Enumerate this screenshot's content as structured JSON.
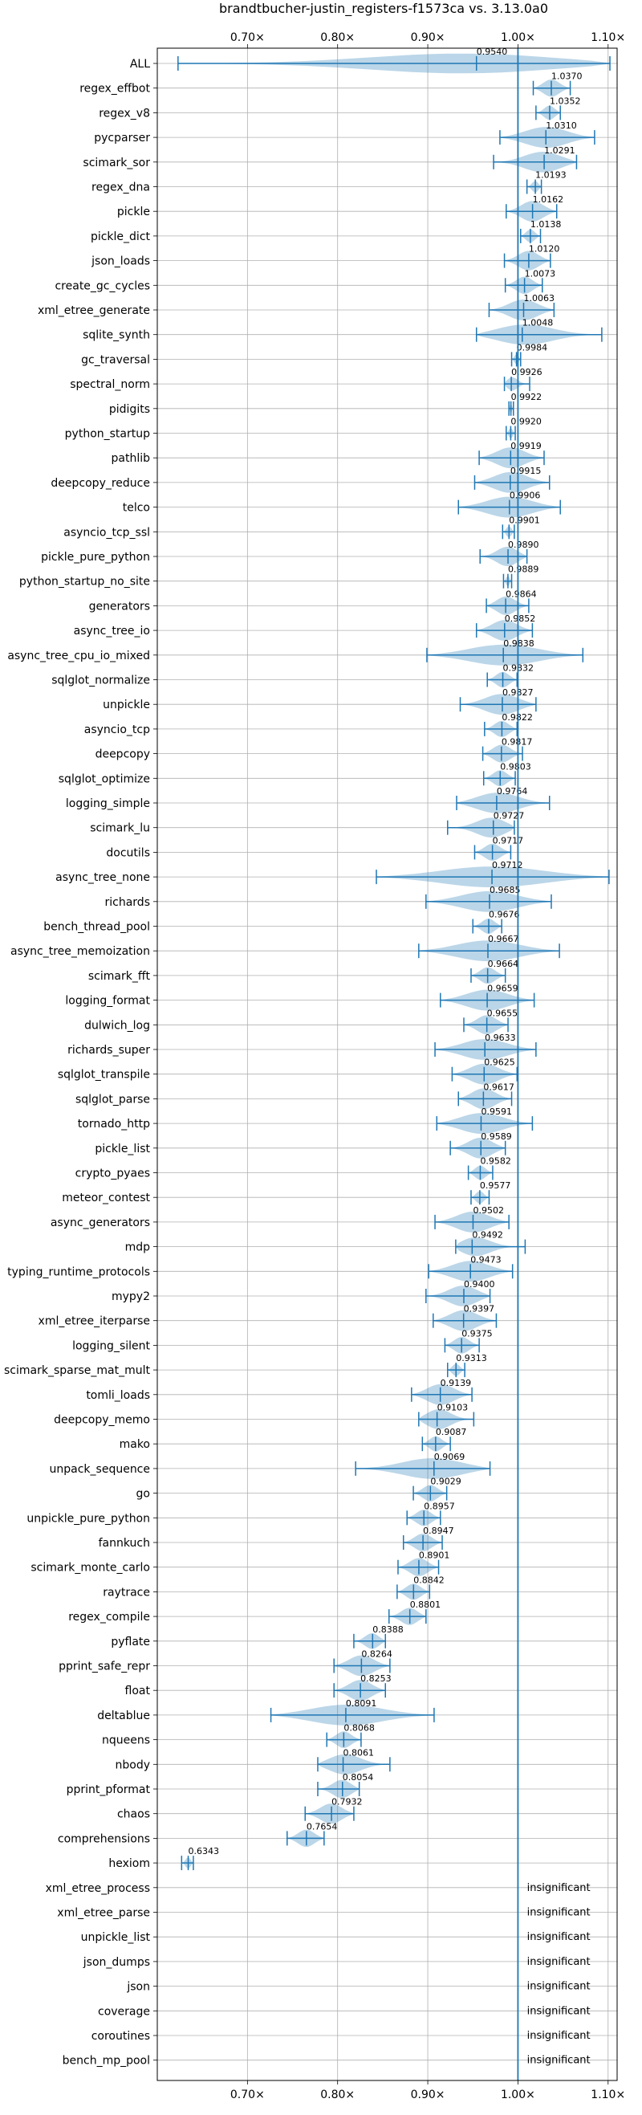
{
  "chart_data": {
    "type": "violin",
    "title": "brandtbucher-justin_registers-f1573ca vs. 3.13.0a0",
    "x_ticks": [
      0.7,
      0.8,
      0.9,
      1.0,
      1.1
    ],
    "x_tick_labels": [
      "0.70×",
      "0.80×",
      "0.90×",
      "1.00×",
      "1.10×"
    ],
    "xlim": [
      0.6,
      1.11
    ],
    "reference_line": 1.0,
    "colors": {
      "accent": "#1f77b4",
      "violin_fill": "#1f77b4",
      "grid": "#b0b0b0"
    },
    "rows": [
      {
        "name": "ALL",
        "value": 0.954,
        "min": 0.623,
        "max": 1.102
      },
      {
        "name": "regex_effbot",
        "value": 1.037,
        "min": 1.017,
        "max": 1.058
      },
      {
        "name": "regex_v8",
        "value": 1.0352,
        "min": 1.02,
        "max": 1.047
      },
      {
        "name": "pycparser",
        "value": 1.031,
        "min": 0.98,
        "max": 1.085
      },
      {
        "name": "scimark_sor",
        "value": 1.0291,
        "min": 0.973,
        "max": 1.065
      },
      {
        "name": "regex_dna",
        "value": 1.0193,
        "min": 1.01,
        "max": 1.026
      },
      {
        "name": "pickle",
        "value": 1.0162,
        "min": 0.987,
        "max": 1.043
      },
      {
        "name": "pickle_dict",
        "value": 1.0138,
        "min": 1.003,
        "max": 1.025
      },
      {
        "name": "json_loads",
        "value": 1.012,
        "min": 0.985,
        "max": 1.036
      },
      {
        "name": "create_gc_cycles",
        "value": 1.0073,
        "min": 0.986,
        "max": 1.027
      },
      {
        "name": "xml_etree_generate",
        "value": 1.0063,
        "min": 0.968,
        "max": 1.04
      },
      {
        "name": "sqlite_synth",
        "value": 1.0048,
        "min": 0.954,
        "max": 1.093
      },
      {
        "name": "gc_traversal",
        "value": 0.9984,
        "min": 0.993,
        "max": 1.003
      },
      {
        "name": "spectral_norm",
        "value": 0.9926,
        "min": 0.985,
        "max": 1.013
      },
      {
        "name": "pidigits",
        "value": 0.9922,
        "min": 0.99,
        "max": 0.995
      },
      {
        "name": "python_startup",
        "value": 0.992,
        "min": 0.987,
        "max": 0.997
      },
      {
        "name": "pathlib",
        "value": 0.9919,
        "min": 0.957,
        "max": 1.029
      },
      {
        "name": "deepcopy_reduce",
        "value": 0.9915,
        "min": 0.952,
        "max": 1.035
      },
      {
        "name": "telco",
        "value": 0.9906,
        "min": 0.934,
        "max": 1.047
      },
      {
        "name": "asyncio_tcp_ssl",
        "value": 0.9901,
        "min": 0.983,
        "max": 0.996
      },
      {
        "name": "pickle_pure_python",
        "value": 0.989,
        "min": 0.958,
        "max": 1.01
      },
      {
        "name": "python_startup_no_site",
        "value": 0.9889,
        "min": 0.984,
        "max": 0.993
      },
      {
        "name": "generators",
        "value": 0.9864,
        "min": 0.965,
        "max": 1.012
      },
      {
        "name": "async_tree_io",
        "value": 0.9852,
        "min": 0.954,
        "max": 1.016
      },
      {
        "name": "async_tree_cpu_io_mixed",
        "value": 0.9838,
        "min": 0.899,
        "max": 1.072
      },
      {
        "name": "sqlglot_normalize",
        "value": 0.9832,
        "min": 0.966,
        "max": 0.999
      },
      {
        "name": "unpickle",
        "value": 0.9827,
        "min": 0.936,
        "max": 1.02
      },
      {
        "name": "asyncio_tcp",
        "value": 0.9822,
        "min": 0.963,
        "max": 0.999
      },
      {
        "name": "deepcopy",
        "value": 0.9817,
        "min": 0.961,
        "max": 1.005
      },
      {
        "name": "sqlglot_optimize",
        "value": 0.9803,
        "min": 0.962,
        "max": 0.997
      },
      {
        "name": "logging_simple",
        "value": 0.9764,
        "min": 0.932,
        "max": 1.035
      },
      {
        "name": "scimark_lu",
        "value": 0.9727,
        "min": 0.922,
        "max": 0.996
      },
      {
        "name": "docutils",
        "value": 0.9717,
        "min": 0.952,
        "max": 0.992
      },
      {
        "name": "async_tree_none",
        "value": 0.9712,
        "min": 0.843,
        "max": 1.101
      },
      {
        "name": "richards",
        "value": 0.9685,
        "min": 0.898,
        "max": 1.037
      },
      {
        "name": "bench_thread_pool",
        "value": 0.9676,
        "min": 0.95,
        "max": 0.982
      },
      {
        "name": "async_tree_memoization",
        "value": 0.9667,
        "min": 0.89,
        "max": 1.046
      },
      {
        "name": "scimark_fft",
        "value": 0.9664,
        "min": 0.948,
        "max": 0.986
      },
      {
        "name": "logging_format",
        "value": 0.9659,
        "min": 0.914,
        "max": 1.018
      },
      {
        "name": "dulwich_log",
        "value": 0.9655,
        "min": 0.94,
        "max": 0.989
      },
      {
        "name": "richards_super",
        "value": 0.9633,
        "min": 0.908,
        "max": 1.02
      },
      {
        "name": "sqlglot_transpile",
        "value": 0.9625,
        "min": 0.927,
        "max": 0.999
      },
      {
        "name": "sqlglot_parse",
        "value": 0.9617,
        "min": 0.934,
        "max": 0.993
      },
      {
        "name": "tornado_http",
        "value": 0.9591,
        "min": 0.91,
        "max": 1.016
      },
      {
        "name": "pickle_list",
        "value": 0.9589,
        "min": 0.925,
        "max": 0.986
      },
      {
        "name": "crypto_pyaes",
        "value": 0.9582,
        "min": 0.945,
        "max": 0.972
      },
      {
        "name": "meteor_contest",
        "value": 0.9577,
        "min": 0.948,
        "max": 0.968
      },
      {
        "name": "async_generators",
        "value": 0.9502,
        "min": 0.908,
        "max": 0.99
      },
      {
        "name": "mdp",
        "value": 0.9492,
        "min": 0.931,
        "max": 1.008
      },
      {
        "name": "typing_runtime_protocols",
        "value": 0.9473,
        "min": 0.901,
        "max": 0.994
      },
      {
        "name": "mypy2",
        "value": 0.94,
        "min": 0.898,
        "max": 0.969
      },
      {
        "name": "xml_etree_iterparse",
        "value": 0.9397,
        "min": 0.906,
        "max": 0.976
      },
      {
        "name": "logging_silent",
        "value": 0.9375,
        "min": 0.919,
        "max": 0.957
      },
      {
        "name": "scimark_sparse_mat_mult",
        "value": 0.9313,
        "min": 0.922,
        "max": 0.941
      },
      {
        "name": "tomli_loads",
        "value": 0.9139,
        "min": 0.882,
        "max": 0.949
      },
      {
        "name": "deepcopy_memo",
        "value": 0.9103,
        "min": 0.89,
        "max": 0.951
      },
      {
        "name": "mako",
        "value": 0.9087,
        "min": 0.894,
        "max": 0.925
      },
      {
        "name": "unpack_sequence",
        "value": 0.9069,
        "min": 0.82,
        "max": 0.969
      },
      {
        "name": "go",
        "value": 0.9029,
        "min": 0.884,
        "max": 0.921
      },
      {
        "name": "unpickle_pure_python",
        "value": 0.8957,
        "min": 0.877,
        "max": 0.914
      },
      {
        "name": "fannkuch",
        "value": 0.8947,
        "min": 0.873,
        "max": 0.916
      },
      {
        "name": "scimark_monte_carlo",
        "value": 0.8901,
        "min": 0.867,
        "max": 0.912
      },
      {
        "name": "raytrace",
        "value": 0.8842,
        "min": 0.866,
        "max": 0.902
      },
      {
        "name": "regex_compile",
        "value": 0.8801,
        "min": 0.857,
        "max": 0.898
      },
      {
        "name": "pyflate",
        "value": 0.8388,
        "min": 0.818,
        "max": 0.853
      },
      {
        "name": "pprint_safe_repr",
        "value": 0.8264,
        "min": 0.796,
        "max": 0.858
      },
      {
        "name": "float",
        "value": 0.8253,
        "min": 0.796,
        "max": 0.853
      },
      {
        "name": "deltablue",
        "value": 0.8091,
        "min": 0.726,
        "max": 0.907
      },
      {
        "name": "nqueens",
        "value": 0.8068,
        "min": 0.788,
        "max": 0.826
      },
      {
        "name": "nbody",
        "value": 0.8061,
        "min": 0.778,
        "max": 0.858
      },
      {
        "name": "pprint_pformat",
        "value": 0.8054,
        "min": 0.778,
        "max": 0.824
      },
      {
        "name": "chaos",
        "value": 0.7932,
        "min": 0.764,
        "max": 0.818
      },
      {
        "name": "comprehensions",
        "value": 0.7654,
        "min": 0.744,
        "max": 0.785
      },
      {
        "name": "hexiom",
        "value": 0.6343,
        "min": 0.627,
        "max": 0.64
      },
      {
        "name": "xml_etree_process",
        "label": "insignificant"
      },
      {
        "name": "xml_etree_parse",
        "label": "insignificant"
      },
      {
        "name": "unpickle_list",
        "label": "insignificant"
      },
      {
        "name": "json_dumps",
        "label": "insignificant"
      },
      {
        "name": "json",
        "label": "insignificant"
      },
      {
        "name": "coverage",
        "label": "insignificant"
      },
      {
        "name": "coroutines",
        "label": "insignificant"
      },
      {
        "name": "bench_mp_pool",
        "label": "insignificant"
      }
    ]
  }
}
